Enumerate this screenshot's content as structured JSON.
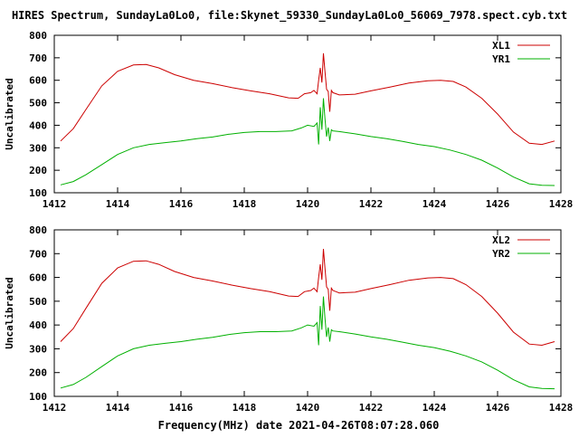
{
  "title": "HIRES Spectrum, SundayLa0Lo0, file:Skynet_59330_SundayLa0Lo0_56069_7978.spect.cyb.txt",
  "xlabel": "Frequency(MHz) date 2021-04-26T08:07:28.060",
  "colors": {
    "xl": "#cc0000",
    "yr": "#00b000",
    "axis": "#000000"
  },
  "chart_data": [
    {
      "type": "line",
      "ylabel": "Uncalibrated",
      "xlim": [
        1412,
        1428
      ],
      "ylim": [
        100,
        800
      ],
      "xticks": [
        1412,
        1414,
        1416,
        1418,
        1420,
        1422,
        1424,
        1426,
        1428
      ],
      "yticks": [
        100,
        200,
        300,
        400,
        500,
        600,
        700,
        800
      ],
      "legend_position": "top-right",
      "series": [
        {
          "name": "XL1",
          "color": "#cc0000",
          "x": [
            1412.2,
            1412.6,
            1413.0,
            1413.5,
            1414.0,
            1414.5,
            1414.9,
            1415.3,
            1415.8,
            1416.4,
            1417.0,
            1417.6,
            1418.2,
            1418.8,
            1419.4,
            1419.7,
            1419.9,
            1420.1,
            1420.2,
            1420.3,
            1420.35,
            1420.4,
            1420.45,
            1420.5,
            1420.55,
            1420.6,
            1420.65,
            1420.7,
            1420.75,
            1420.8,
            1420.9,
            1421.0,
            1421.5,
            1422.0,
            1422.6,
            1423.2,
            1423.8,
            1424.2,
            1424.6,
            1425.0,
            1425.5,
            1426.0,
            1426.5,
            1427.0,
            1427.4,
            1427.8
          ],
          "y": [
            330,
            385,
            470,
            575,
            640,
            668,
            670,
            655,
            625,
            600,
            585,
            568,
            553,
            540,
            522,
            520,
            540,
            545,
            555,
            540,
            600,
            655,
            590,
            720,
            640,
            560,
            550,
            460,
            555,
            545,
            540,
            535,
            538,
            553,
            570,
            588,
            598,
            600,
            595,
            570,
            520,
            450,
            370,
            320,
            315,
            330
          ]
        },
        {
          "name": "YR1",
          "color": "#00b000",
          "x": [
            1412.2,
            1412.6,
            1413.0,
            1413.5,
            1414.0,
            1414.5,
            1415.0,
            1415.5,
            1416.0,
            1416.5,
            1417.0,
            1417.5,
            1418.0,
            1418.5,
            1419.0,
            1419.5,
            1419.8,
            1420.0,
            1420.2,
            1420.3,
            1420.35,
            1420.4,
            1420.45,
            1420.5,
            1420.55,
            1420.6,
            1420.65,
            1420.7,
            1420.75,
            1420.8,
            1421.0,
            1421.5,
            1422.0,
            1422.5,
            1423.0,
            1423.5,
            1424.0,
            1424.5,
            1425.0,
            1425.5,
            1426.0,
            1426.5,
            1427.0,
            1427.4,
            1427.8
          ],
          "y": [
            135,
            150,
            180,
            225,
            270,
            300,
            315,
            323,
            330,
            340,
            348,
            360,
            368,
            372,
            372,
            375,
            388,
            400,
            395,
            410,
            315,
            480,
            380,
            520,
            430,
            350,
            390,
            330,
            380,
            375,
            372,
            362,
            350,
            340,
            328,
            315,
            305,
            290,
            270,
            245,
            210,
            170,
            140,
            133,
            132
          ]
        }
      ]
    },
    {
      "type": "line",
      "ylabel": "Uncalibrated",
      "xlim": [
        1412,
        1428
      ],
      "ylim": [
        100,
        800
      ],
      "xticks": [
        1412,
        1414,
        1416,
        1418,
        1420,
        1422,
        1424,
        1426,
        1428
      ],
      "yticks": [
        100,
        200,
        300,
        400,
        500,
        600,
        700,
        800
      ],
      "legend_position": "top-right",
      "series": [
        {
          "name": "XL2",
          "color": "#cc0000",
          "x": [
            1412.2,
            1412.6,
            1413.0,
            1413.5,
            1414.0,
            1414.5,
            1414.9,
            1415.3,
            1415.8,
            1416.4,
            1417.0,
            1417.6,
            1418.2,
            1418.8,
            1419.4,
            1419.7,
            1419.9,
            1420.1,
            1420.2,
            1420.3,
            1420.35,
            1420.4,
            1420.45,
            1420.5,
            1420.55,
            1420.6,
            1420.65,
            1420.7,
            1420.75,
            1420.8,
            1420.9,
            1421.0,
            1421.5,
            1422.0,
            1422.6,
            1423.2,
            1423.8,
            1424.2,
            1424.6,
            1425.0,
            1425.5,
            1426.0,
            1426.5,
            1427.0,
            1427.4,
            1427.8
          ],
          "y": [
            330,
            385,
            470,
            575,
            640,
            668,
            670,
            655,
            625,
            600,
            585,
            568,
            553,
            540,
            522,
            520,
            540,
            545,
            555,
            540,
            600,
            655,
            590,
            720,
            640,
            560,
            550,
            460,
            555,
            545,
            540,
            535,
            538,
            553,
            570,
            588,
            598,
            600,
            595,
            570,
            520,
            450,
            370,
            320,
            315,
            330
          ]
        },
        {
          "name": "YR2",
          "color": "#00b000",
          "x": [
            1412.2,
            1412.6,
            1413.0,
            1413.5,
            1414.0,
            1414.5,
            1415.0,
            1415.5,
            1416.0,
            1416.5,
            1417.0,
            1417.5,
            1418.0,
            1418.5,
            1419.0,
            1419.5,
            1419.8,
            1420.0,
            1420.2,
            1420.3,
            1420.35,
            1420.4,
            1420.45,
            1420.5,
            1420.55,
            1420.6,
            1420.65,
            1420.7,
            1420.75,
            1420.8,
            1421.0,
            1421.5,
            1422.0,
            1422.5,
            1423.0,
            1423.5,
            1424.0,
            1424.5,
            1425.0,
            1425.5,
            1426.0,
            1426.5,
            1427.0,
            1427.4,
            1427.8
          ],
          "y": [
            135,
            150,
            180,
            225,
            270,
            300,
            315,
            323,
            330,
            340,
            348,
            360,
            368,
            372,
            372,
            375,
            388,
            400,
            395,
            410,
            315,
            480,
            380,
            520,
            430,
            350,
            390,
            330,
            380,
            375,
            372,
            362,
            350,
            340,
            328,
            315,
            305,
            290,
            270,
            245,
            210,
            170,
            140,
            133,
            132
          ]
        }
      ]
    }
  ]
}
